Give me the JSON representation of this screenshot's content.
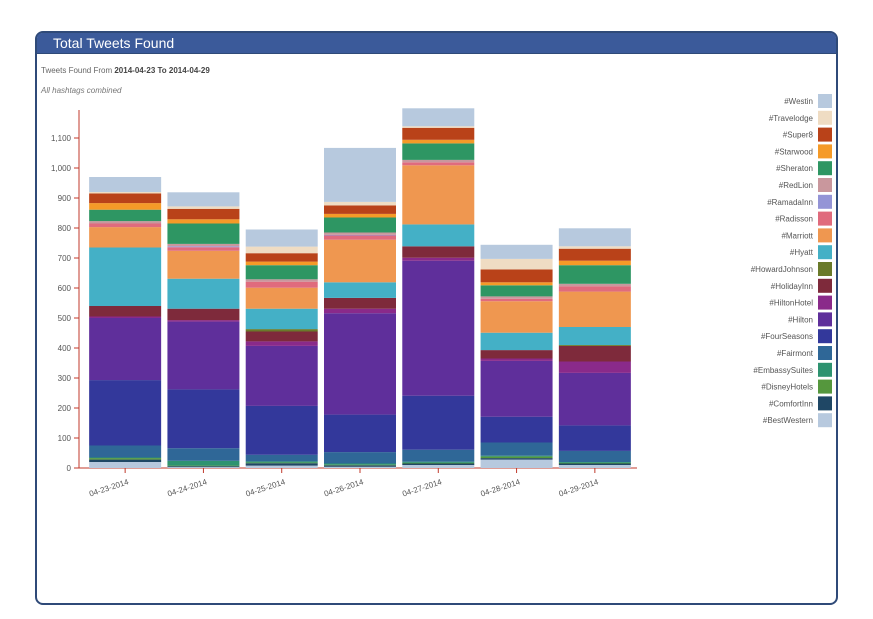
{
  "panel": {
    "title": "Total Tweets Found",
    "subtitle_prefix": "Tweets Found From ",
    "start_date": "2014-04-23",
    "to_word": " To ",
    "end_date": "2014-04-29",
    "note": "All hashtags combined"
  },
  "chart_data": {
    "type": "bar",
    "stacked": true,
    "title": "Total Tweets Found",
    "categories": [
      "04-23-2014",
      "04-24-2014",
      "04-25-2014",
      "04-26-2014",
      "04-27-2014",
      "04-28-2014",
      "04-29-2014"
    ],
    "ylim": [
      0,
      1150
    ],
    "yticks": [
      0,
      100,
      200,
      300,
      400,
      500,
      600,
      700,
      800,
      900,
      1000,
      1100
    ],
    "ytick_labels": [
      "0",
      "100",
      "200",
      "300",
      "400",
      "500",
      "600",
      "700",
      "800",
      "900",
      "1,000",
      "1,100"
    ],
    "series": [
      {
        "name": "#BestWestern",
        "color": "#b7c9de",
        "values": [
          20,
          3,
          8,
          4,
          10,
          28,
          10
        ]
      },
      {
        "name": "#ComfortInn",
        "color": "#1f4765",
        "values": [
          8,
          3,
          8,
          5,
          5,
          5,
          5
        ]
      },
      {
        "name": "#DisneyHotels",
        "color": "#55973d",
        "values": [
          5,
          2,
          2,
          2,
          2,
          5,
          2
        ]
      },
      {
        "name": "#EmbassySuites",
        "color": "#2e9370",
        "values": [
          2,
          16,
          4,
          4,
          4,
          3,
          3
        ]
      },
      {
        "name": "#Fairmont",
        "color": "#2f6797",
        "values": [
          40,
          42,
          22,
          38,
          40,
          44,
          37
        ]
      },
      {
        "name": "#FourSeasons",
        "color": "#33389b",
        "values": [
          218,
          196,
          163,
          125,
          180,
          86,
          85
        ]
      },
      {
        "name": "#Hilton",
        "color": "#5f2f9b",
        "values": [
          207,
          226,
          200,
          338,
          450,
          186,
          175
        ]
      },
      {
        "name": "#HiltonHotel",
        "color": "#8a2a8a",
        "values": [
          5,
          5,
          15,
          15,
          10,
          8,
          38
        ]
      },
      {
        "name": "#HolidayInn",
        "color": "#7e2a3b",
        "values": [
          35,
          38,
          33,
          36,
          38,
          28,
          52
        ]
      },
      {
        "name": "#HowardJohnson",
        "color": "#6a7a2a",
        "values": [
          0,
          0,
          8,
          0,
          0,
          0,
          3
        ]
      },
      {
        "name": "#Hyatt",
        "color": "#44b0c6",
        "values": [
          195,
          100,
          68,
          52,
          73,
          58,
          60
        ]
      },
      {
        "name": "#Marriott",
        "color": "#ef9750",
        "values": [
          68,
          93,
          70,
          142,
          197,
          105,
          118
        ]
      },
      {
        "name": "#Radisson",
        "color": "#e06b7d",
        "values": [
          12,
          12,
          20,
          14,
          10,
          8,
          18
        ]
      },
      {
        "name": "#RamadaInn",
        "color": "#9494d6",
        "values": [
          0,
          3,
          0,
          2,
          0,
          0,
          0
        ]
      },
      {
        "name": "#RedLion",
        "color": "#c9979d",
        "values": [
          8,
          8,
          8,
          8,
          8,
          8,
          8
        ]
      },
      {
        "name": "#Sheraton",
        "color": "#2e9663",
        "values": [
          38,
          68,
          47,
          50,
          55,
          37,
          62
        ]
      },
      {
        "name": "#Starwood",
        "color": "#f59a28",
        "values": [
          22,
          14,
          12,
          12,
          12,
          10,
          15
        ]
      },
      {
        "name": "#Super8",
        "color": "#b94219",
        "values": [
          32,
          35,
          28,
          28,
          40,
          43,
          40
        ]
      },
      {
        "name": "#Travelodge",
        "color": "#efdcc3",
        "values": [
          5,
          8,
          22,
          12,
          5,
          35,
          8
        ]
      },
      {
        "name": "#Westin",
        "color": "#b7c9de",
        "values": [
          50,
          47,
          57,
          180,
          60,
          47,
          60
        ]
      }
    ],
    "legend_order": [
      "#Westin",
      "#Travelodge",
      "#Super8",
      "#Starwood",
      "#Sheraton",
      "#RedLion",
      "#RamadaInn",
      "#Radisson",
      "#Marriott",
      "#Hyatt",
      "#HowardJohnson",
      "#HolidayInn",
      "#HiltonHotel",
      "#Hilton",
      "#FourSeasons",
      "#Fairmont",
      "#EmbassySuites",
      "#DisneyHotels",
      "#ComfortInn",
      "#BestWestern"
    ],
    "legend_position": "right",
    "grid": false,
    "axis_color": "#c0392b",
    "tick_text_color": "#555555"
  }
}
